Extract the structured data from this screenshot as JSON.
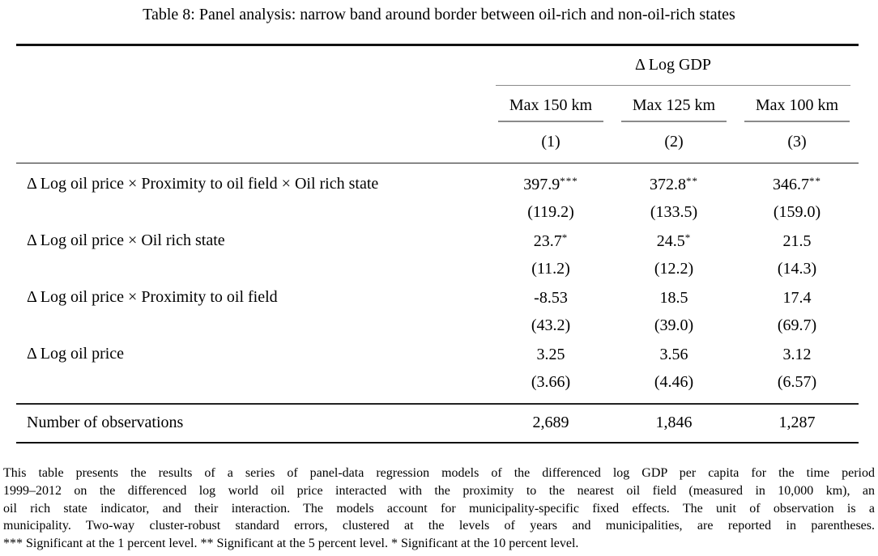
{
  "caption": "Table 8: Panel analysis: narrow band around border between oil-rich and non-oil-rich states",
  "table": {
    "dependent_variable": "Δ Log GDP",
    "columns": [
      "Max 150 km",
      "Max 125 km",
      "Max 100 km"
    ],
    "model_numbers": [
      "(1)",
      "(2)",
      "(3)"
    ],
    "rows": [
      {
        "label": "Δ Log oil price × Proximity to oil field × Oil rich state",
        "cells": [
          {
            "coef": "397.9",
            "stars": "***",
            "se": "(119.2)"
          },
          {
            "coef": "372.8",
            "stars": "**",
            "se": "(133.5)"
          },
          {
            "coef": "346.7",
            "stars": "**",
            "se": "(159.0)"
          }
        ]
      },
      {
        "label": "Δ Log oil price × Oil rich state",
        "cells": [
          {
            "coef": "23.7",
            "stars": "*",
            "se": "(11.2)"
          },
          {
            "coef": "24.5",
            "stars": "*",
            "se": "(12.2)"
          },
          {
            "coef": "21.5",
            "stars": "",
            "se": "(14.3)"
          }
        ]
      },
      {
        "label": "Δ Log oil price × Proximity to oil field",
        "cells": [
          {
            "coef": "-8.53",
            "stars": "",
            "se": "(43.2)"
          },
          {
            "coef": "18.5",
            "stars": "",
            "se": "(39.0)"
          },
          {
            "coef": "17.4",
            "stars": "",
            "se": "(69.7)"
          }
        ]
      },
      {
        "label": "Δ Log oil price",
        "cells": [
          {
            "coef": "3.25",
            "stars": "",
            "se": "(3.66)"
          },
          {
            "coef": "3.56",
            "stars": "",
            "se": "(4.46)"
          },
          {
            "coef": "3.12",
            "stars": "",
            "se": "(6.57)"
          }
        ]
      }
    ],
    "summary": {
      "label": "Number of observations",
      "values": [
        "2,689",
        "1,846",
        "1,287"
      ]
    }
  },
  "notes": {
    "lines": [
      "This table presents the results of a series of panel-data regression models of the differenced log GDP per capita for the time period",
      "1999–2012 on the differenced log world oil price interacted with the proximity to the nearest oil field (measured in 10,000 km), an",
      "oil rich state indicator, and their interaction. The models account for municipality-specific fixed effects. The unit of observation is a",
      "municipality. Two-way cluster-robust standard errors, clustered at the levels of years and municipalities, are reported in parentheses.",
      "*** Significant at the 1 percent level. ** Significant at the 5 percent level. * Significant at the 10 percent level."
    ]
  }
}
